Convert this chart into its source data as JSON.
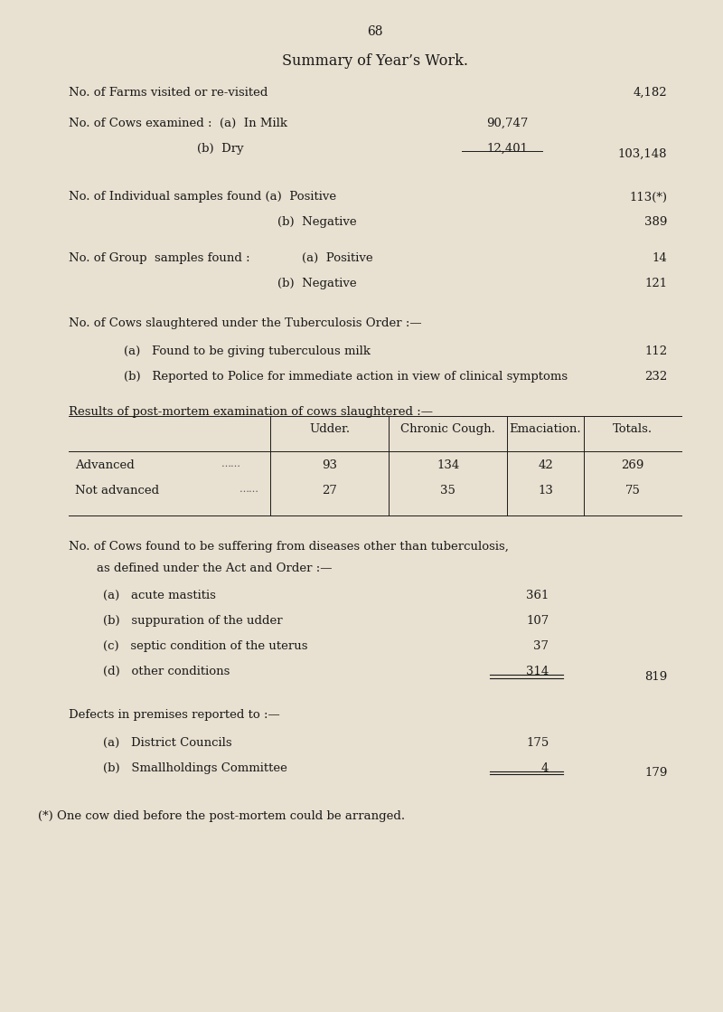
{
  "page_number": "68",
  "title": "Summary of Year’s Work.",
  "bg_color": "#e8e0d0",
  "text_color": "#1a1a1a",
  "sections": [
    {
      "label": "No. of Farms visited or re-visited",
      "dots": true,
      "value": "4,182",
      "indent": 0
    },
    {
      "label": "No. of Cows examined :",
      "dots": false,
      "value": null,
      "indent": 0
    },
    {
      "label": "(a)  In Milk",
      "dots": true,
      "value": "90,747",
      "indent": 1
    },
    {
      "label": "(b)  Dry",
      "dots": true,
      "value": "12,401",
      "indent": 1,
      "subtotal": "103,148"
    },
    {
      "label": "No. of Individual samples found (a)  Positive",
      "dots": true,
      "value": "113(*)",
      "indent": 0
    },
    {
      "label": "(b)  Negative",
      "dots": true,
      "value": "389",
      "indent": 2
    },
    {
      "label": "No. of Group  samples found :",
      "dots": false,
      "value": null,
      "indent": 0
    },
    {
      "label": "(a)  Positive",
      "dots": true,
      "value": "14",
      "indent": 2
    },
    {
      "label": "(b)  Negative",
      "dots": true,
      "value": "121",
      "indent": 2
    },
    {
      "label": "No. of Cows slaughtered under the Tuberculosis Order :—",
      "dots": false,
      "value": null,
      "indent": 0
    },
    {
      "label": "(a)   Found to be giving tuberculous milk",
      "dots": true,
      "value": "112",
      "indent": 1
    },
    {
      "label": "(b)   Reported to Police for immediate action in view of clinical symptoms",
      "dots": false,
      "value": "232",
      "indent": 1
    }
  ],
  "table_header": [
    "",
    "Udder.",
    "Chronic Cough.",
    "Emaciation.",
    "Totals."
  ],
  "table_rows": [
    [
      "Advanced",
      "93",
      "134",
      "42",
      "269"
    ],
    [
      "Not advanced",
      "27",
      "35",
      "13",
      "75"
    ]
  ],
  "diseases_header": "No. of Cows found to be suffering from diseases other than tuberculosis,\n    as defined under the Act and Order :—",
  "diseases": [
    {
      "label": "(a)   acute mastitis",
      "value": "361"
    },
    {
      "label": "(b)   suppuration of the udder",
      "value": "107"
    },
    {
      "label": "(c)   septic condition of the uterus",
      "value": "37"
    },
    {
      "label": "(d)   other conditions",
      "value": "314"
    }
  ],
  "diseases_total": "819",
  "defects_header": "Defects in premises reported to :—",
  "defects": [
    {
      "label": "(a)   District Councils",
      "value": "175"
    },
    {
      "label": "(b)   Smallholdings Committee",
      "value": "4"
    }
  ],
  "defects_total": "179",
  "footnote": "(*) One cow died before the post-mortem could be arranged."
}
